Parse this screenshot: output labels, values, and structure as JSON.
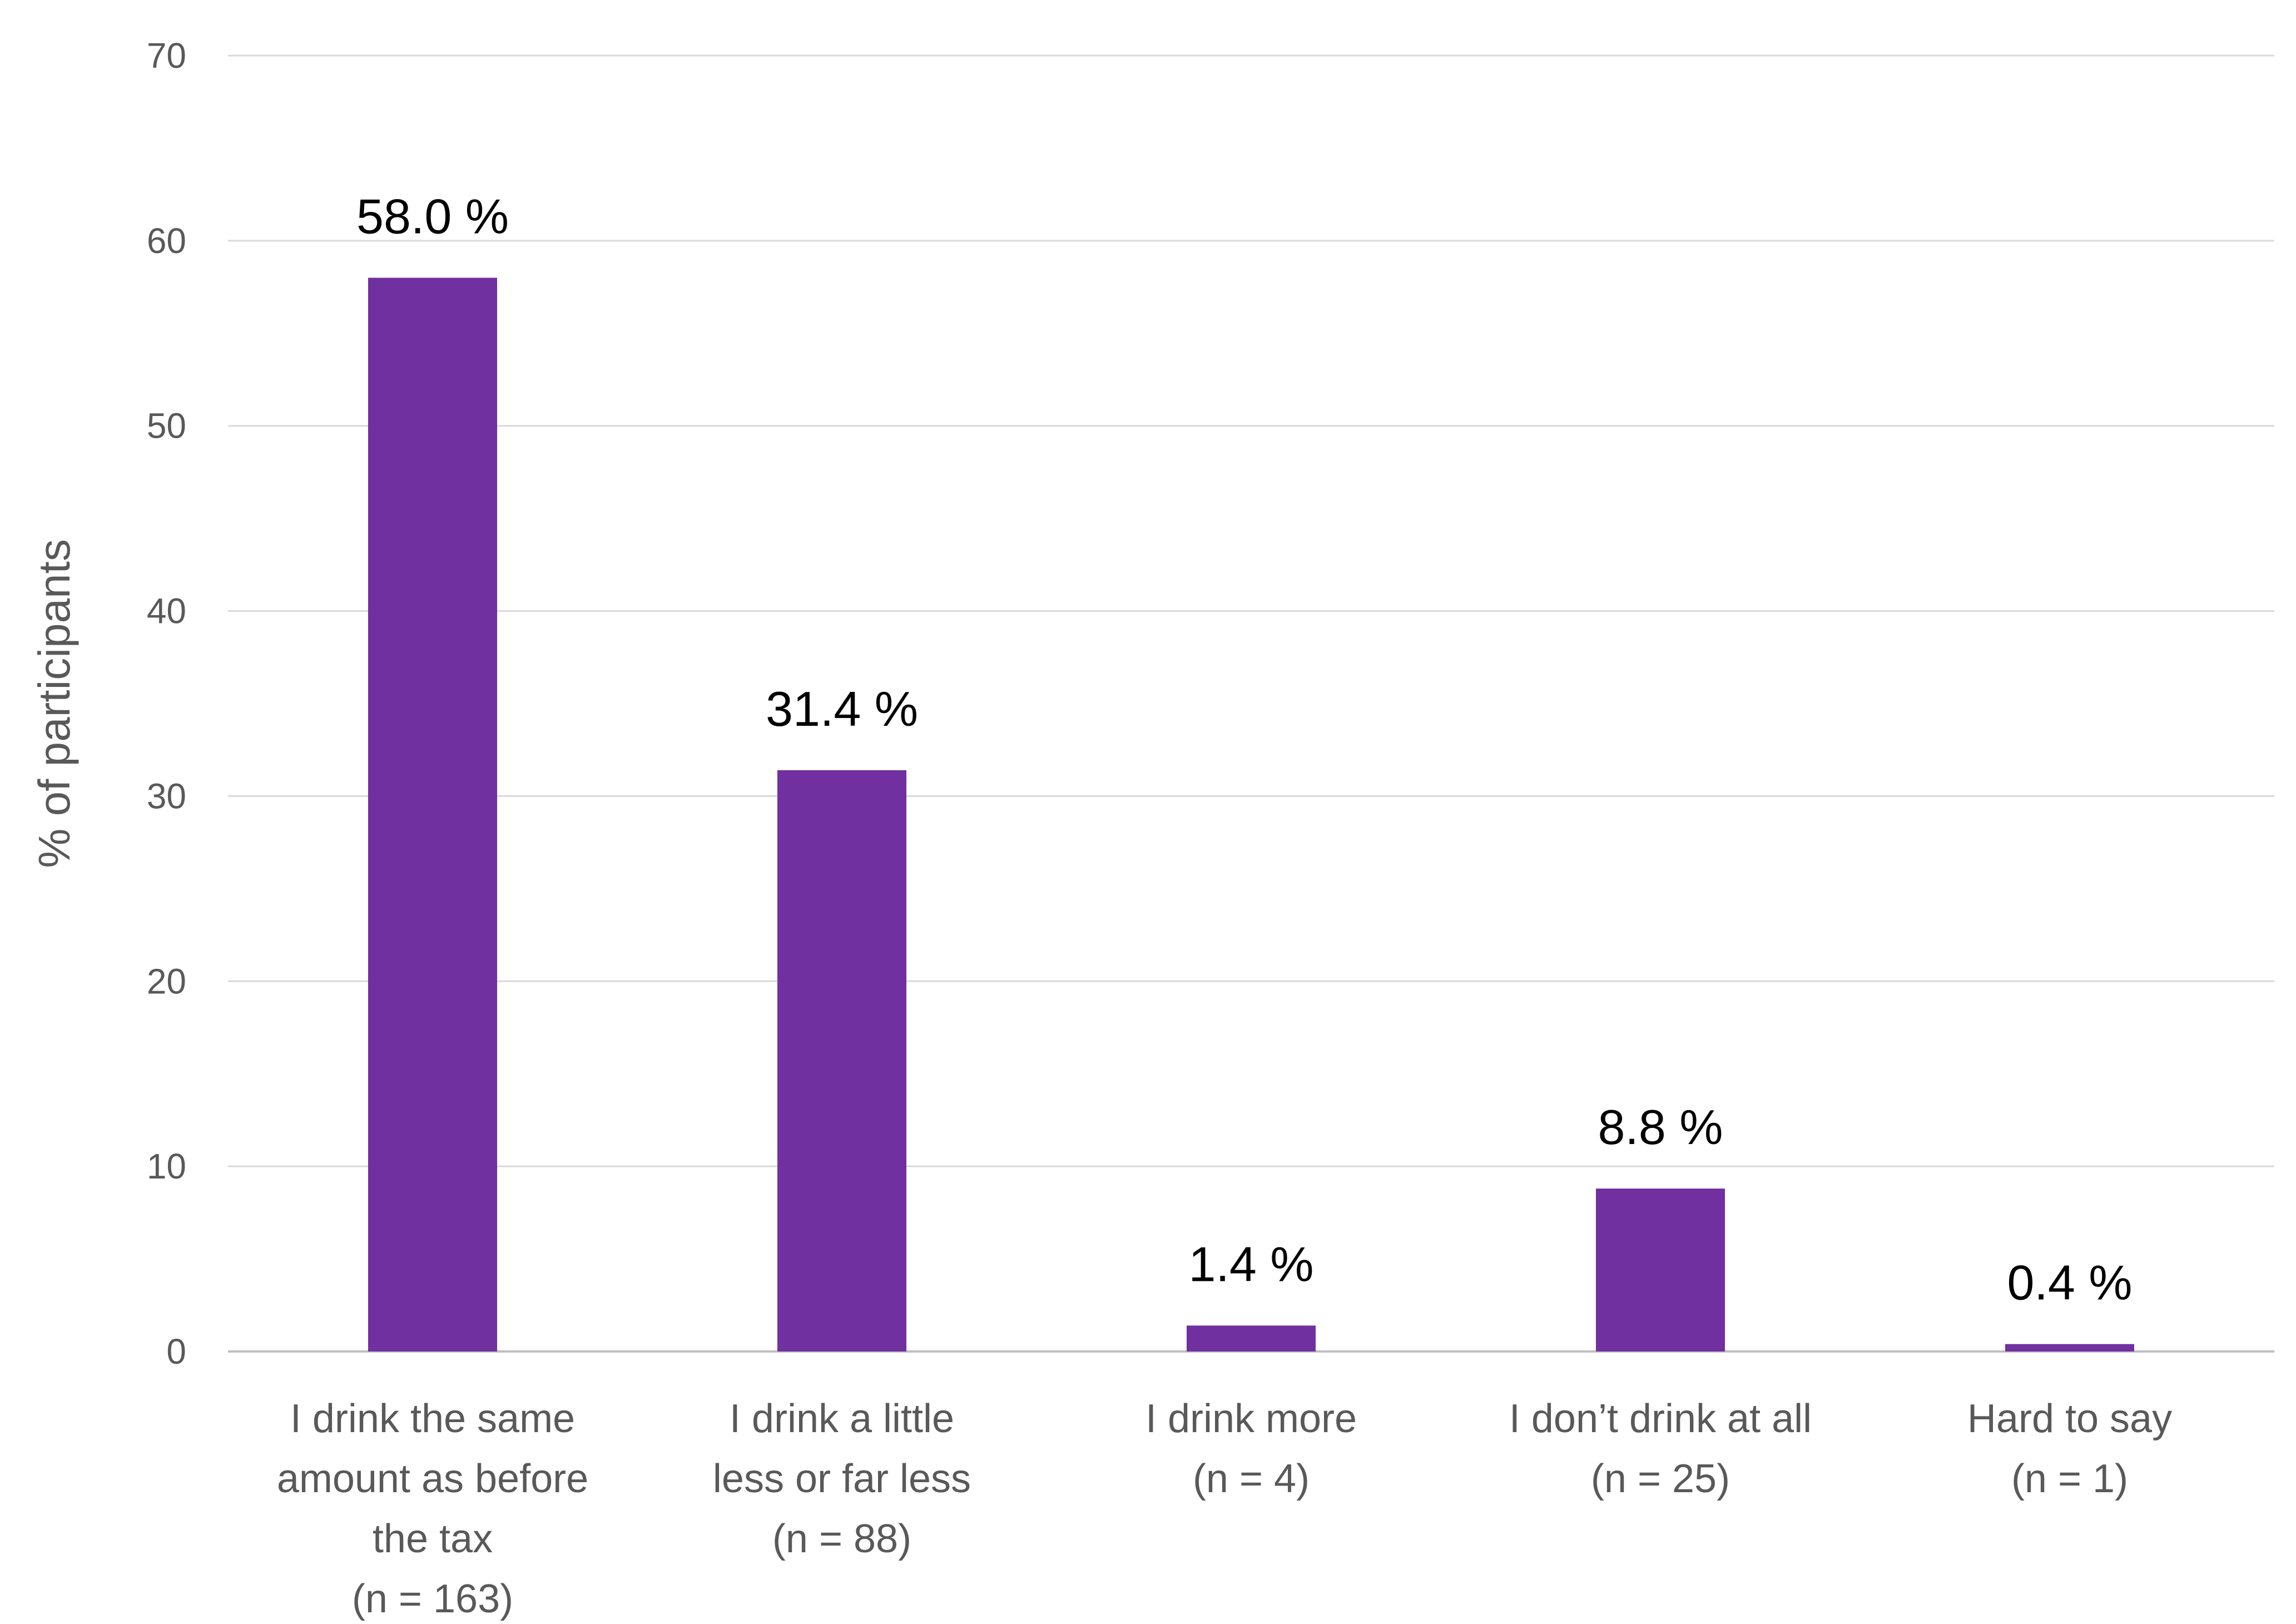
{
  "chart_data": {
    "type": "bar",
    "title": "",
    "xlabel": "",
    "ylabel": "% of participants",
    "ylim": [
      0,
      70
    ],
    "yticks": [
      0,
      10,
      20,
      30,
      40,
      50,
      60,
      70
    ],
    "grid": true,
    "bar_color": "#7030A0",
    "categories": [
      [
        "I drink the same",
        "amount as before",
        "the tax",
        "(n = 163)"
      ],
      [
        "I drink a little",
        "less or far less",
        "(n = 88)"
      ],
      [
        "I drink more",
        "(n = 4)"
      ],
      [
        "I don’t drink at all",
        "(n = 25)"
      ],
      [
        "Hard to say",
        "(n = 1)"
      ]
    ],
    "values": [
      58.0,
      31.4,
      1.4,
      8.8,
      0.4
    ],
    "data_labels": [
      "58.0 %",
      "31.4 %",
      "1.4 %",
      "8.8 %",
      "0.4 %"
    ]
  }
}
